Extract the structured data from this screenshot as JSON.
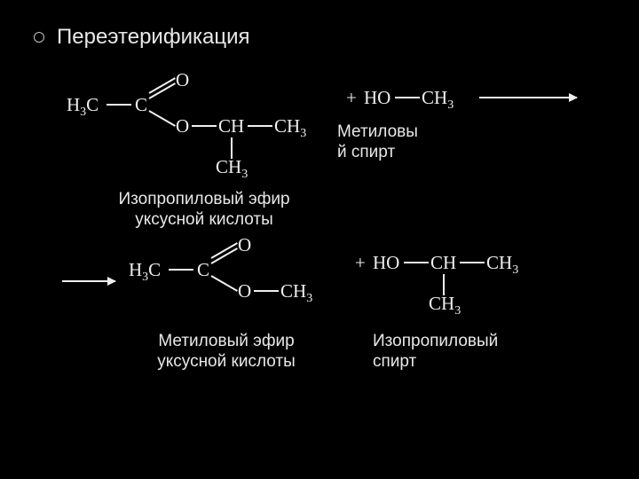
{
  "slide": {
    "title": "Переэтерификация",
    "background_color": "#000000",
    "text_color": "#e8e8e8",
    "formula_color": "#efefef",
    "title_fontsize": 24,
    "label_fontsize": 19
  },
  "reaction": {
    "reactants": [
      {
        "name": "isopropyl-acetate",
        "label": "Изопропиловый эфир\nуксусной кислоты",
        "fragments": {
          "h3c": "H₃C",
          "c": "C",
          "o_double": "O",
          "o_single": "O",
          "ch": "CH",
          "ch3_a": "CH₃",
          "ch3_b": "CH₃"
        }
      },
      {
        "name": "methanol",
        "label": "Метиловы\nй спирт",
        "fragments": {
          "plus": "+",
          "ho": "HO",
          "ch3": "CH₃"
        }
      }
    ],
    "products": [
      {
        "name": "methyl-acetate",
        "label": "Метиловый эфир\nуксусной кислоты",
        "fragments": {
          "h3c": "H₃C",
          "c": "C",
          "o_double": "O",
          "o_single": "O",
          "ch3": "CH₃"
        }
      },
      {
        "name": "isopropanol",
        "label": "Изопропиловый\nспирт",
        "fragments": {
          "plus": "+",
          "ho": "HO",
          "ch": "CH",
          "ch3_a": "CH₃",
          "ch3_b": "CH₃"
        }
      }
    ],
    "bond_color": "#efefef",
    "bond_width": 2
  }
}
